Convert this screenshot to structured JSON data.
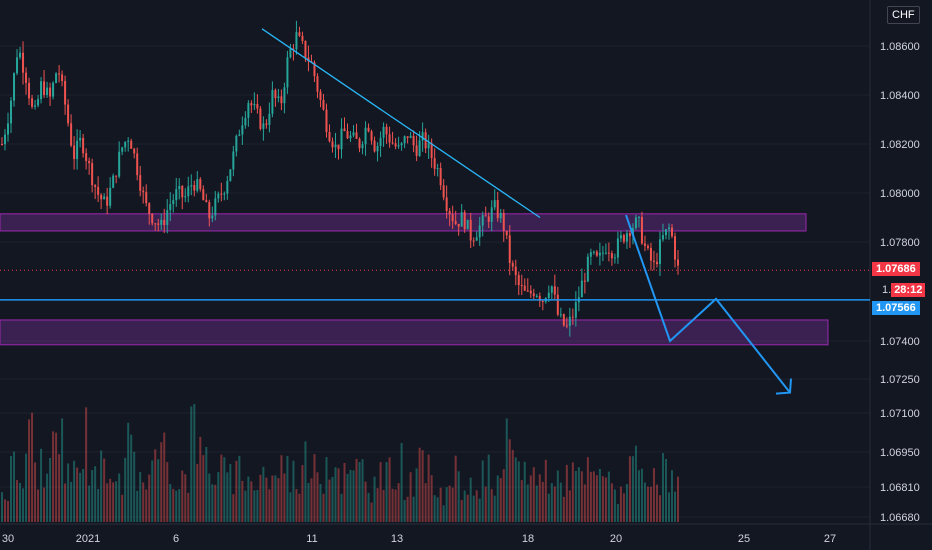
{
  "currency_button": "CHF",
  "colors": {
    "bg": "#131722",
    "up": "#26a69a",
    "down": "#ef5350",
    "zone_fill": "#5b2a79",
    "zone_stroke": "#9c27b0",
    "trend": "#29b6f6",
    "last_price_bg": "#f23645",
    "hline": "#2196f3"
  },
  "chart_data": {
    "type": "candlestick",
    "price_axis": {
      "ticks": [
        "1.08600",
        "1.08400",
        "1.08200",
        "1.08000",
        "1.07800",
        "1.07400",
        "1.07250",
        "1.07100",
        "1.06950",
        "1.06810",
        "1.06680"
      ],
      "range": [
        1.0664,
        1.0878
      ]
    },
    "x_axis": {
      "ticks": [
        "30",
        "2021",
        "6",
        "11",
        "13",
        "18",
        "20",
        "25",
        "27"
      ]
    },
    "last_price": "1.07686",
    "countdown": "28:12",
    "countdown_prefix": "1.",
    "horizontal_line_price": "1.07566",
    "zones": [
      {
        "from": 1.07845,
        "to": 1.07915
      },
      {
        "from": 1.07385,
        "to": 1.07485
      }
    ],
    "trendline": [
      [
        1.0867,
        1.079
      ]
    ],
    "projection": [
      1.0791,
      1.074,
      1.0757,
      1.0719
    ],
    "price_anchors": [
      1.082,
      1.0835,
      1.086,
      1.0848,
      1.083,
      1.0845,
      1.0838,
      1.0852,
      1.0835,
      1.0815,
      1.0822,
      1.081,
      1.08,
      1.0795,
      1.0805,
      1.0818,
      1.0824,
      1.081,
      1.0795,
      1.079,
      1.0786,
      1.0795,
      1.08,
      1.0798,
      1.0805,
      1.08,
      1.079,
      1.0796,
      1.0803,
      1.0814,
      1.0828,
      1.0838,
      1.0832,
      1.0826,
      1.084,
      1.0835,
      1.0856,
      1.0864,
      1.0858,
      1.0852,
      1.0838,
      1.0826,
      1.0818,
      1.0825,
      1.0822,
      1.082,
      1.0829,
      1.0818,
      1.0826,
      1.0821,
      1.0817,
      1.0824,
      1.0818,
      1.0822,
      1.0815,
      1.0808,
      1.0795,
      1.0788,
      1.079,
      1.0782,
      1.0786,
      1.079,
      1.0794,
      1.0788,
      1.077,
      1.0762,
      1.0758,
      1.0761,
      1.0757,
      1.0764,
      1.0749,
      1.0745,
      1.0752,
      1.0764,
      1.0774,
      1.0772,
      1.0779,
      1.0776,
      1.0782,
      1.0786,
      1.0788,
      1.0776,
      1.077,
      1.0781,
      1.0786,
      1.0769
    ],
    "volume_anchors": [
      0.3,
      0.5,
      0.4,
      0.8,
      0.55,
      0.4,
      0.6,
      0.75,
      0.5,
      0.45,
      0.85,
      0.6,
      0.5,
      0.65,
      0.55,
      0.45,
      0.7,
      0.5,
      0.4,
      0.55,
      0.6,
      0.5,
      0.45,
      0.5,
      0.9,
      0.6,
      0.55,
      0.5,
      0.45,
      0.4,
      0.5,
      0.35,
      0.45,
      0.5,
      0.4,
      0.55,
      0.5,
      0.45,
      0.6,
      0.45,
      0.5,
      0.65,
      0.55,
      0.45,
      0.4,
      0.5,
      0.45,
      0.35,
      0.4,
      0.45,
      0.55,
      0.4,
      0.35,
      0.5,
      0.45,
      0.4,
      0.3,
      0.45,
      0.35,
      0.3,
      0.35,
      0.45,
      0.3,
      0.35,
      0.7,
      0.5,
      0.55,
      0.45,
      0.4,
      0.5,
      0.35,
      0.45,
      0.5,
      0.4,
      0.45,
      0.4,
      0.5,
      0.35,
      0.3,
      0.45,
      0.5,
      0.4,
      0.35,
      0.4,
      0.45,
      0.4,
      0.35
    ]
  }
}
